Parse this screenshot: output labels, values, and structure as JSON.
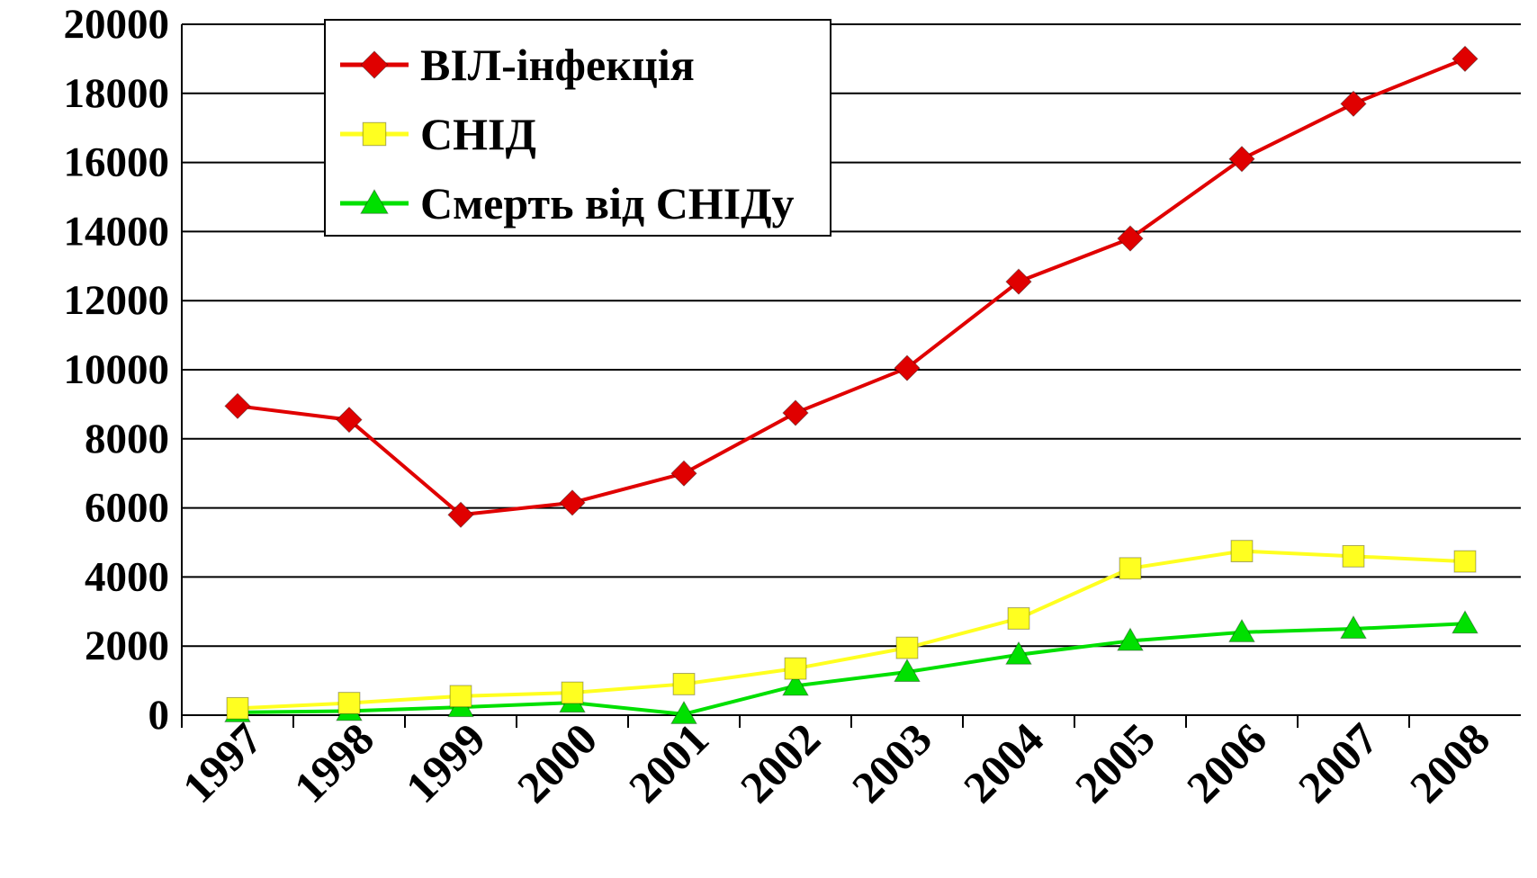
{
  "chart_data": {
    "type": "line",
    "categories": [
      "1997",
      "1998",
      "1999",
      "2000",
      "2001",
      "2002",
      "2003",
      "2004",
      "2005",
      "2006",
      "2007",
      "2008"
    ],
    "ylim": [
      0,
      20000
    ],
    "yticks": [
      0,
      2000,
      4000,
      6000,
      8000,
      10000,
      12000,
      14000,
      16000,
      18000,
      20000
    ],
    "grid": true,
    "legend_position": "top-left",
    "series": [
      {
        "name": "ВІЛ-інфекція",
        "marker": "diamond",
        "color": "#e00000",
        "marker_color": "#e00000",
        "values": [
          8950,
          8550,
          5800,
          6150,
          7000,
          8750,
          10050,
          12550,
          13800,
          16100,
          17700,
          19000
        ]
      },
      {
        "name": "СНІД",
        "marker": "square",
        "color": "#ffff20",
        "marker_color": "#ffff20",
        "values": [
          200,
          350,
          550,
          650,
          900,
          1350,
          1950,
          2800,
          4250,
          4750,
          4600,
          4450
        ]
      },
      {
        "name": "Смерть від СНІДу",
        "marker": "triangle",
        "color": "#00e000",
        "marker_color": "#00e000",
        "values": [
          80,
          120,
          230,
          360,
          30,
          850,
          1250,
          1750,
          2150,
          2400,
          2500,
          2650
        ]
      }
    ]
  }
}
